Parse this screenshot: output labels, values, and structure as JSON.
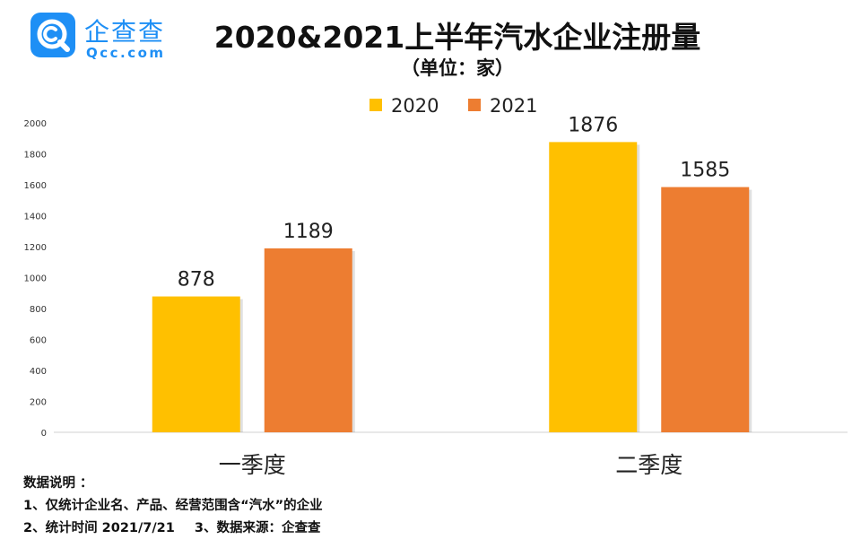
{
  "logo": {
    "name_cn": "企查查",
    "name_en": "Qcc.com"
  },
  "header": {
    "title": "2020&2021上半年汽水企业注册量",
    "subtitle": "（单位：家）"
  },
  "chart_data": {
    "type": "bar",
    "categories": [
      "一季度",
      "二季度"
    ],
    "series": [
      {
        "name": "2020",
        "values": [
          878,
          1876
        ],
        "color": "#FFC000"
      },
      {
        "name": "2021",
        "values": [
          1189,
          1585
        ],
        "color": "#ED7D31"
      }
    ],
    "yticks": [
      "0",
      "200",
      "400",
      "600",
      "800",
      "1000",
      "1200",
      "1400",
      "1600",
      "1800",
      "2000"
    ],
    "ylim": [
      0,
      2000
    ],
    "legend": "top-center",
    "grid": false
  },
  "notes": {
    "heading": "数据说明 ：",
    "line1": "1、仅统计企业名、产品、经营范围含“汽水”的企业",
    "line2a": "2、统计时间 2021/7/21",
    "line2b": "3、数据来源：企查查"
  }
}
